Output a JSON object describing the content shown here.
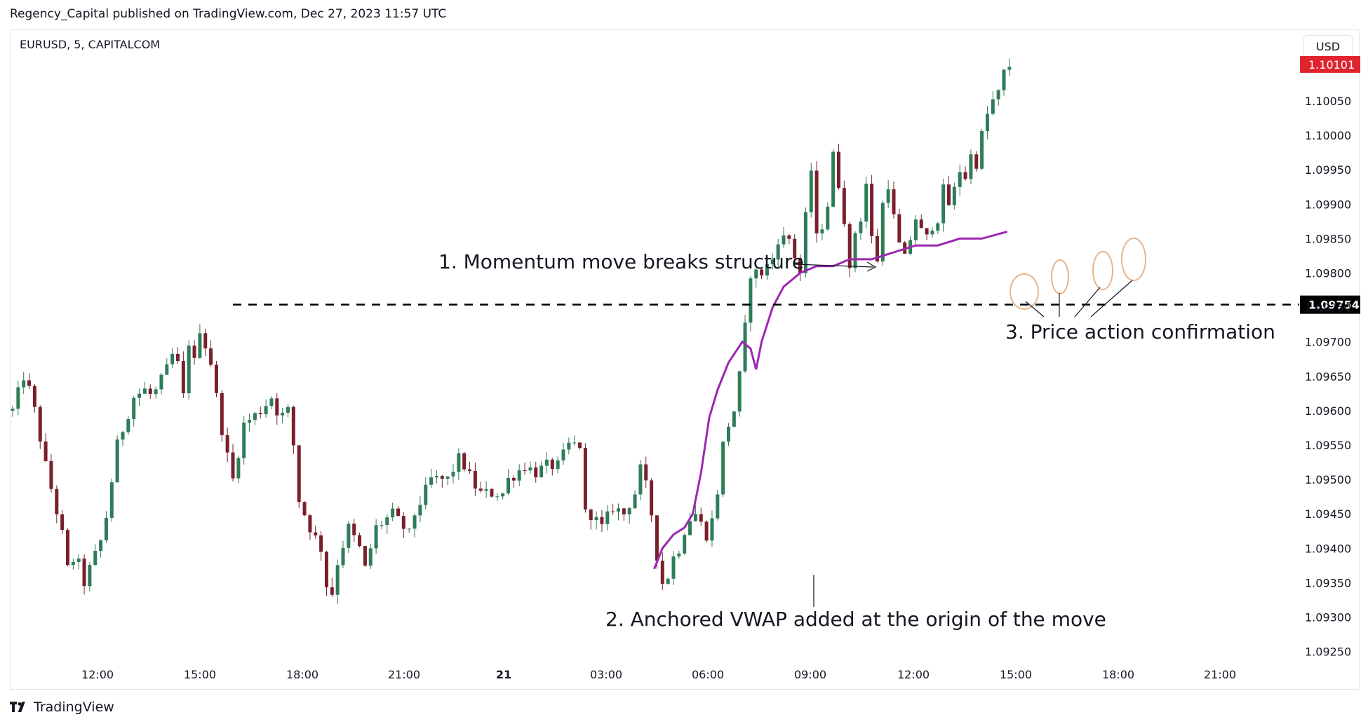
{
  "header": {
    "published": "Regency_Capital published on TradingView.com, Dec 27, 2023 11:57 UTC",
    "symbol": "EURUSD, 5, CAPITALCOM",
    "currency_button": "USD"
  },
  "footer": {
    "brand": "TradingView"
  },
  "colors": {
    "up": "#2e7d58",
    "down": "#7a1f2b",
    "vwap": "#9c27b0",
    "current_price_tag": "#e0232e",
    "level_tag": "#000000",
    "highlight_circle": "#e8b48a"
  },
  "chart_data": {
    "type": "candlestick",
    "price_scale_currency": "USD",
    "y_ticks": [
      "1.10050",
      "1.10000",
      "1.09950",
      "1.09900",
      "1.09850",
      "1.09800",
      "1.09750",
      "1.09700",
      "1.09650",
      "1.09600",
      "1.09550",
      "1.09500",
      "1.09450",
      "1.09400",
      "1.09350",
      "1.09300",
      "1.09250"
    ],
    "x_ticks": [
      {
        "label": "12:00",
        "bold": false
      },
      {
        "label": "15:00",
        "bold": false
      },
      {
        "label": "18:00",
        "bold": false
      },
      {
        "label": "21:00",
        "bold": false
      },
      {
        "label": "21",
        "bold": true
      },
      {
        "label": "03:00",
        "bold": false
      },
      {
        "label": "06:00",
        "bold": false
      },
      {
        "label": "09:00",
        "bold": false
      },
      {
        "label": "12:00",
        "bold": false
      },
      {
        "label": "15:00",
        "bold": false
      },
      {
        "label": "18:00",
        "bold": false
      },
      {
        "label": "21:00",
        "bold": false
      }
    ],
    "ylim": [
      1.0922,
      1.1015
    ],
    "current_price": "1.10101",
    "structure_level": "1.09754",
    "close_path": [
      [
        0,
        1.096
      ],
      [
        2,
        1.0965
      ],
      [
        3.5,
        1.0962
      ],
      [
        6,
        1.0952
      ],
      [
        9,
        1.0942
      ],
      [
        10,
        1.0937
      ],
      [
        11.5,
        1.0939
      ],
      [
        13,
        1.0935
      ],
      [
        16.5,
        1.0942
      ],
      [
        19,
        1.0955
      ],
      [
        22,
        1.0962
      ],
      [
        24,
        1.0963
      ],
      [
        25.5,
        1.0962
      ],
      [
        28,
        1.0966
      ],
      [
        29.5,
        1.0969
      ],
      [
        31,
        1.0962
      ],
      [
        32,
        1.097
      ],
      [
        33,
        1.0967
      ],
      [
        34,
        1.0972
      ],
      [
        36,
        1.0967
      ],
      [
        37,
        1.0962
      ],
      [
        38.5,
        1.0955
      ],
      [
        40,
        1.095
      ],
      [
        42,
        1.0958
      ],
      [
        45,
        1.096
      ],
      [
        47,
        1.0962
      ],
      [
        48.5,
        1.0959
      ],
      [
        50,
        1.096
      ],
      [
        51,
        1.0955
      ],
      [
        52,
        1.0947
      ],
      [
        54,
        1.0943
      ],
      [
        56,
        1.094
      ],
      [
        57.5,
        1.0932
      ],
      [
        58.5,
        1.0935
      ],
      [
        59,
        1.0938
      ],
      [
        61,
        1.0943
      ],
      [
        63,
        1.094
      ],
      [
        64,
        1.0937
      ],
      [
        65,
        1.094
      ],
      [
        66,
        1.0943
      ],
      [
        69,
        1.0945
      ],
      [
        72,
        1.0942
      ],
      [
        73,
        1.0945
      ],
      [
        76,
        1.095
      ],
      [
        79,
        1.095
      ],
      [
        81,
        1.0953
      ],
      [
        82,
        1.0952
      ],
      [
        84,
        1.0949
      ],
      [
        85,
        1.0948
      ],
      [
        87,
        1.0948
      ],
      [
        89,
        1.0948
      ],
      [
        90,
        1.095
      ],
      [
        93,
        1.0952
      ],
      [
        95,
        1.0951
      ],
      [
        97,
        1.0952
      ],
      [
        99,
        1.0952
      ],
      [
        101,
        1.0955
      ],
      [
        103,
        1.0955
      ],
      [
        104,
        1.0945
      ],
      [
        105,
        1.0945
      ],
      [
        107,
        1.0943
      ],
      [
        109,
        1.0946
      ],
      [
        111,
        1.0945
      ],
      [
        113,
        1.0948
      ],
      [
        113.8,
        1.0952
      ],
      [
        114.5,
        1.095
      ],
      [
        115.5,
        1.0948
      ],
      [
        116.5,
        1.0942
      ],
      [
        117.5,
        1.0936
      ],
      [
        118.5,
        1.0934
      ],
      [
        119.5,
        1.0938
      ],
      [
        121,
        1.094
      ],
      [
        122.5,
        1.0944
      ],
      [
        124,
        1.0945
      ],
      [
        126,
        1.0942
      ],
      [
        127.5,
        1.0945
      ],
      [
        129,
        1.0955
      ],
      [
        130,
        1.0958
      ],
      [
        131,
        1.096
      ],
      [
        131.5,
        1.0963
      ],
      [
        132.5,
        1.0967
      ],
      [
        133.3,
        1.0975
      ],
      [
        134,
        1.098
      ],
      [
        136,
        1.098
      ],
      [
        138,
        1.0982
      ],
      [
        139,
        1.0985
      ],
      [
        141,
        1.0985
      ],
      [
        143,
        1.098
      ],
      [
        143.7,
        1.0984
      ],
      [
        144.3,
        1.0992
      ],
      [
        145,
        1.0995
      ],
      [
        146,
        1.0985
      ],
      [
        147,
        1.0987
      ],
      [
        148,
        1.099
      ],
      [
        149,
        1.0997
      ],
      [
        150,
        1.0993
      ],
      [
        151,
        1.0988
      ],
      [
        152,
        1.098
      ],
      [
        153,
        1.0986
      ],
      [
        154,
        1.0988
      ],
      [
        155,
        1.0993
      ],
      [
        156,
        1.0985
      ],
      [
        157,
        1.0982
      ],
      [
        158,
        1.099
      ],
      [
        159,
        1.0993
      ],
      [
        160,
        1.0988
      ],
      [
        161,
        1.0984
      ],
      [
        162,
        1.0982
      ],
      [
        163,
        1.0985
      ],
      [
        164,
        1.0988
      ],
      [
        165,
        1.0986
      ],
      [
        166,
        1.0985
      ],
      [
        167,
        1.0987
      ],
      [
        168,
        1.0988
      ],
      [
        169,
        1.0992
      ],
      [
        170,
        1.099
      ],
      [
        171,
        1.0992
      ],
      [
        172,
        1.0995
      ],
      [
        173,
        1.0994
      ],
      [
        174,
        1.0997
      ],
      [
        175,
        1.0996
      ],
      [
        176,
        1.1
      ],
      [
        177,
        1.1003
      ],
      [
        178,
        1.1005
      ],
      [
        179,
        1.1006
      ],
      [
        180,
        1.1009
      ],
      [
        180.6,
        1.10101
      ]
    ],
    "vwap_path": [
      [
        116.5,
        1.0937
      ],
      [
        118,
        1.094
      ],
      [
        120,
        1.0942
      ],
      [
        122,
        1.0943
      ],
      [
        123.5,
        1.0945
      ],
      [
        125,
        1.0951
      ],
      [
        126.5,
        1.0959
      ],
      [
        128,
        1.0963
      ],
      [
        130,
        1.0967
      ],
      [
        132.5,
        1.097
      ],
      [
        134,
        1.0969
      ],
      [
        135,
        1.0966
      ],
      [
        136,
        1.097
      ],
      [
        138,
        1.0975
      ],
      [
        140,
        1.0978
      ],
      [
        143,
        1.098
      ],
      [
        146,
        1.0981
      ],
      [
        149,
        1.0981
      ],
      [
        152,
        1.0982
      ],
      [
        156,
        1.0982
      ],
      [
        160,
        1.0983
      ],
      [
        164,
        1.0984
      ],
      [
        168,
        1.0984
      ],
      [
        172,
        1.0985
      ],
      [
        176,
        1.0985
      ],
      [
        180.6,
        1.0986
      ]
    ],
    "annotations": [
      {
        "text": "1. Momentum move breaks structure"
      },
      {
        "text": "2. Anchored VWAP added at the origin of the move"
      },
      {
        "text": "3. Price action confirmation"
      }
    ]
  }
}
